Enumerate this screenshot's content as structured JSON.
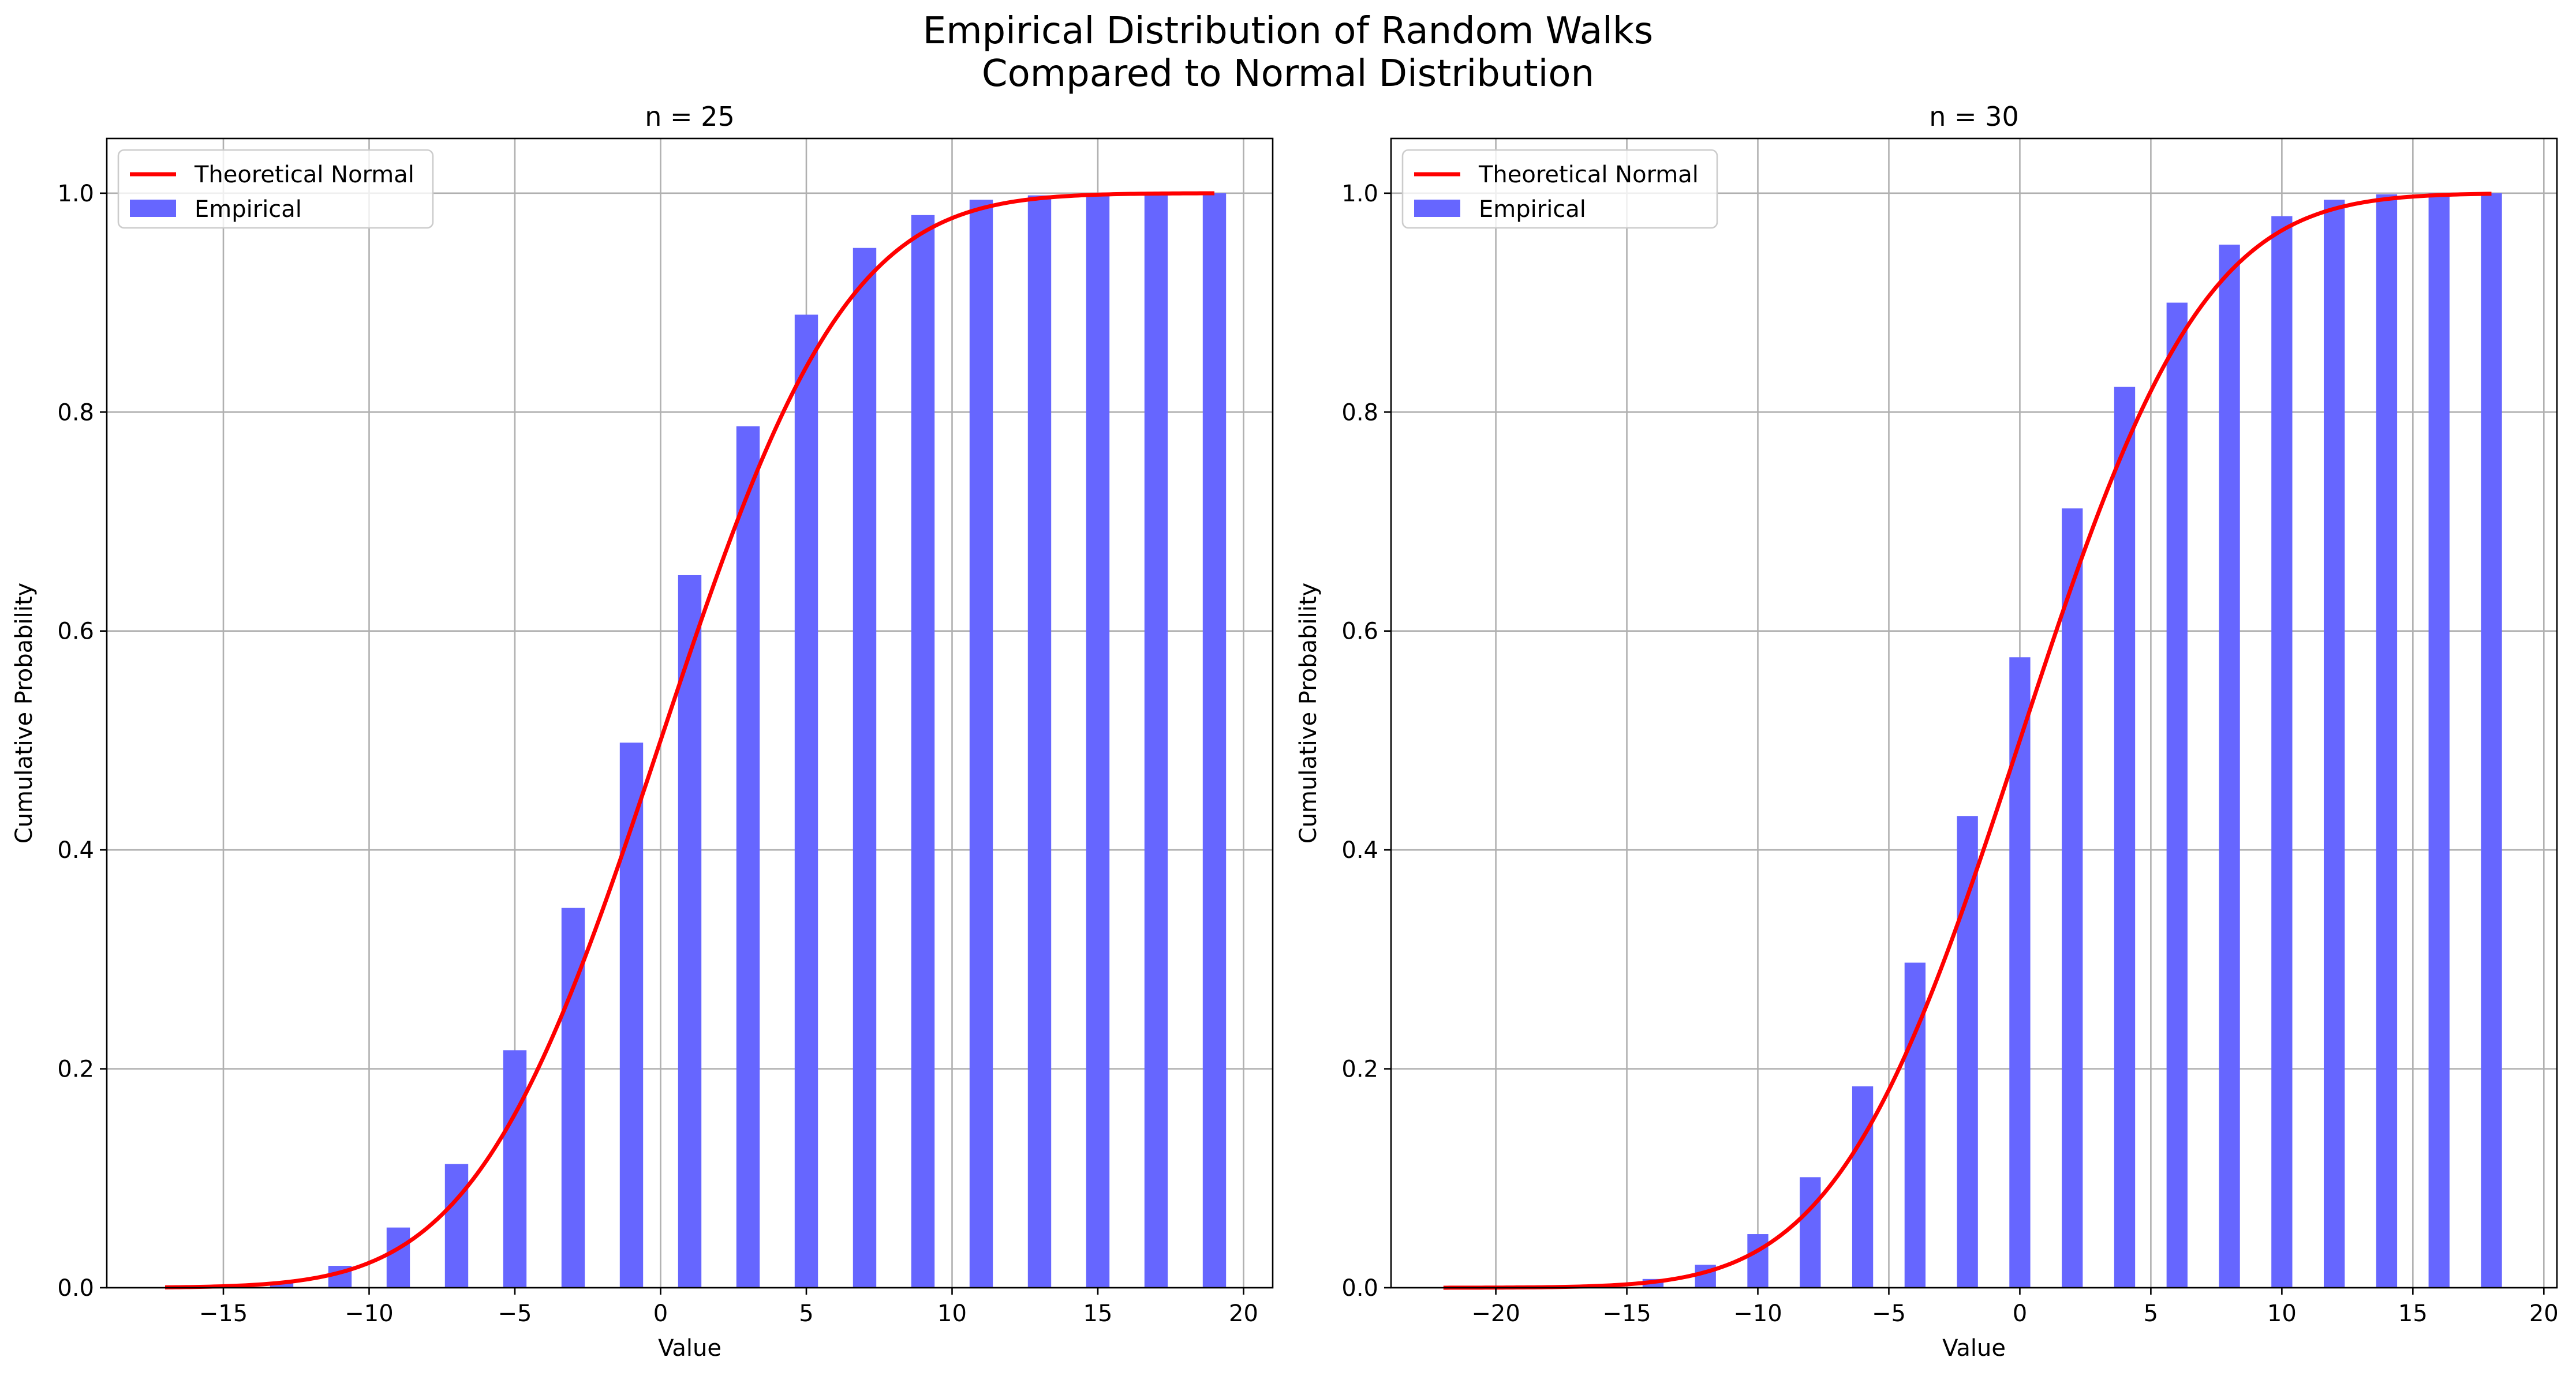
{
  "figure": {
    "title_line1": "Empirical Distribution of Random Walks",
    "title_line2": "Compared to Normal Distribution"
  },
  "colors": {
    "bar": "#6666ff",
    "line": "#ff0000",
    "grid": "#b0b0b0",
    "axes": "#000000"
  },
  "chart_data": [
    {
      "type": "bar",
      "title": "n = 25",
      "xlabel": "Value",
      "ylabel": "Cumulative Probability",
      "xlim": [
        -19,
        21
      ],
      "ylim": [
        0,
        1.05
      ],
      "xticks": [
        -15,
        -10,
        -5,
        0,
        5,
        10,
        15,
        20
      ],
      "xtick_labels": [
        "−15",
        "−10",
        "−5",
        "0",
        "5",
        "10",
        "15",
        "20"
      ],
      "yticks": [
        0.0,
        0.2,
        0.4,
        0.6,
        0.8,
        1.0
      ],
      "ytick_labels": [
        "0.0",
        "0.2",
        "0.4",
        "0.6",
        "0.8",
        "1.0"
      ],
      "grid": true,
      "legend_position": "upper left",
      "series": [
        {
          "name": "Theoretical Normal",
          "kind": "line",
          "mean": 0,
          "std": 5,
          "x_range": [
            -17,
            19
          ]
        },
        {
          "name": "Empirical",
          "kind": "bar",
          "x": [
            -17,
            -15,
            -13,
            -11,
            -9,
            -7,
            -5,
            -3,
            -1,
            1,
            3,
            5,
            7,
            9,
            11,
            13,
            15,
            17,
            19
          ],
          "values": [
            0.0,
            0.001,
            0.005,
            0.02,
            0.055,
            0.113,
            0.217,
            0.347,
            0.498,
            0.651,
            0.787,
            0.889,
            0.95,
            0.98,
            0.994,
            0.998,
            0.9995,
            1.0,
            1.0
          ]
        }
      ]
    },
    {
      "type": "bar",
      "title": "n = 30",
      "xlabel": "Value",
      "ylabel": "Cumulative Probability",
      "xlim": [
        -24,
        20.5
      ],
      "ylim": [
        0,
        1.05
      ],
      "xticks": [
        -20,
        -15,
        -10,
        -5,
        0,
        5,
        10,
        15,
        20
      ],
      "xtick_labels": [
        "−20",
        "−15",
        "−10",
        "−5",
        "0",
        "5",
        "10",
        "15",
        "20"
      ],
      "yticks": [
        0.0,
        0.2,
        0.4,
        0.6,
        0.8,
        1.0
      ],
      "ytick_labels": [
        "0.0",
        "0.2",
        "0.4",
        "0.6",
        "0.8",
        "1.0"
      ],
      "grid": true,
      "legend_position": "upper left",
      "series": [
        {
          "name": "Theoretical Normal",
          "kind": "line",
          "mean": 0,
          "std": 5.48,
          "x_range": [
            -22,
            18
          ]
        },
        {
          "name": "Empirical",
          "kind": "bar",
          "x": [
            -22,
            -20,
            -18,
            -16,
            -14,
            -12,
            -10,
            -8,
            -6,
            -4,
            -2,
            0,
            2,
            4,
            6,
            8,
            10,
            12,
            14,
            16,
            18
          ],
          "values": [
            0.0,
            0.0,
            0.0005,
            0.002,
            0.008,
            0.021,
            0.049,
            0.101,
            0.184,
            0.297,
            0.431,
            0.576,
            0.712,
            0.823,
            0.9,
            0.953,
            0.979,
            0.994,
            0.999,
            1.0,
            1.0
          ]
        }
      ]
    }
  ]
}
